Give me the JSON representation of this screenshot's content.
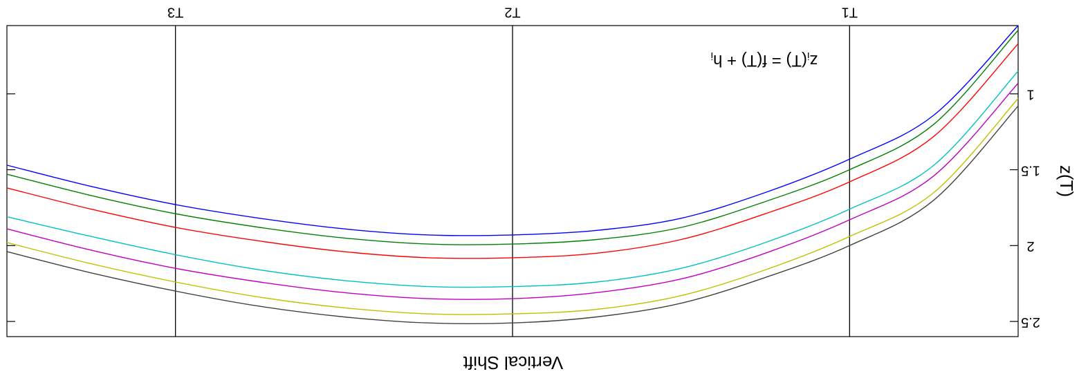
{
  "chart_data": {
    "type": "line",
    "orientation": "rotated-180",
    "title": "Vertical Shift",
    "ylabel": "z(T)",
    "formula": {
      "lhs": "z",
      "lhs_sub": "i",
      "mid": "(T) = f(T) + h",
      "rhs_sub": "i"
    },
    "x": {
      "range": [
        0,
        6
      ],
      "ticks": [
        {
          "value": 1,
          "label": "T1"
        },
        {
          "value": 3,
          "label": "T2"
        },
        {
          "value": 5,
          "label": "T3"
        }
      ],
      "vertical_lines": [
        1,
        3,
        5
      ]
    },
    "y": {
      "range": [
        0.55,
        2.6
      ],
      "ticks": [
        1,
        1.5,
        2,
        2.5
      ],
      "tick_labels": [
        "1",
        "1.5",
        "2",
        "2.5"
      ]
    },
    "series_points_x": [
      0,
      0.5,
      1,
      1.5,
      2,
      2.5,
      3,
      3.5,
      4,
      4.5,
      5,
      5.5,
      6
    ],
    "series": [
      {
        "color": "#0000ff",
        "values": [
          0.55,
          1.14,
          1.43,
          1.65,
          1.82,
          1.9,
          1.93,
          1.93,
          1.89,
          1.82,
          1.73,
          1.61,
          1.47
        ]
      },
      {
        "color": "#008000",
        "values": [
          0.58,
          1.2,
          1.5,
          1.71,
          1.88,
          1.96,
          1.99,
          1.99,
          1.95,
          1.88,
          1.79,
          1.67,
          1.53
        ]
      },
      {
        "color": "#ff0000",
        "values": [
          0.67,
          1.28,
          1.58,
          1.79,
          1.96,
          2.05,
          2.08,
          2.08,
          2.04,
          1.97,
          1.88,
          1.76,
          1.62
        ]
      },
      {
        "color": "#00c0c0",
        "values": [
          0.85,
          1.47,
          1.76,
          1.98,
          2.15,
          2.24,
          2.27,
          2.27,
          2.23,
          2.16,
          2.06,
          1.94,
          1.81
        ]
      },
      {
        "color": "#c000c0",
        "values": [
          0.93,
          1.54,
          1.83,
          2.05,
          2.22,
          2.31,
          2.35,
          2.35,
          2.31,
          2.24,
          2.15,
          2.03,
          1.89
        ]
      },
      {
        "color": "#c0c000",
        "values": [
          1.03,
          1.65,
          1.94,
          2.16,
          2.33,
          2.42,
          2.45,
          2.45,
          2.41,
          2.34,
          2.24,
          2.12,
          1.98
        ]
      },
      {
        "color": "#404040",
        "values": [
          1.08,
          1.7,
          2.0,
          2.21,
          2.38,
          2.47,
          2.51,
          2.51,
          2.47,
          2.4,
          2.3,
          2.18,
          2.04
        ]
      }
    ]
  }
}
